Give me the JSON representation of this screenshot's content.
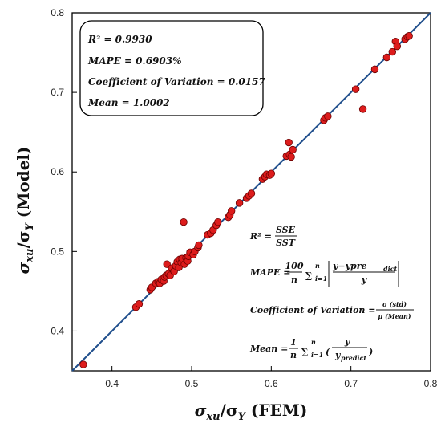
{
  "chart_data": {
    "type": "scatter",
    "x_title": {
      "sym": "σ",
      "sub": "xu",
      "sep": "/σ",
      "subY": "Y",
      "rest": " (FEM)"
    },
    "y_title": {
      "sym": "σ",
      "sub": "xu",
      "sep": "/σ",
      "subY": "Y",
      "rest": " (Model)"
    },
    "xlim": [
      0.35,
      0.8
    ],
    "ylim": [
      0.35,
      0.8
    ],
    "x_ticks": [
      "0.4",
      "0.5",
      "0.6",
      "0.7",
      "0.8"
    ],
    "y_ticks": [
      "0.4",
      "0.5",
      "0.6",
      "0.7",
      "0.8"
    ],
    "grid": false,
    "reference_line": "y = x",
    "colors": {
      "points": "#dd1c1c",
      "point_edge": "#6a0000",
      "line": "#1f4e8c",
      "frame": "#000000"
    },
    "stats_box": [
      "R² = 0.9930",
      "MAPE = 0.6903%",
      "Coefficient of Variation = 0.0157",
      "Mean = 1.0002"
    ],
    "formulas": {
      "r2": {
        "lhs": "R² =",
        "num": "SSE",
        "den": "SST"
      },
      "mape": {
        "lhs": "MAPE =",
        "num": "100",
        "den": "n",
        "sum": "∑",
        "sum_sup": "n",
        "sum_sub": "i=1",
        "abs_num": "y−ypre",
        "abs_num_sub": "dict",
        "abs_den": "y"
      },
      "cov": {
        "lhs": "Coefficient of Variation =",
        "num": "σ (std)",
        "den": "μ (Mean)"
      },
      "mean": {
        "lhs": "Mean =",
        "num": "1",
        "den": "n",
        "sum": "∑",
        "sum_sup": "n",
        "sum_sub": "i=1",
        "frac_num": "y",
        "frac_den": "y",
        "frac_den_sub": "predict"
      }
    },
    "points": [
      [
        0.364,
        0.358
      ],
      [
        0.43,
        0.43
      ],
      [
        0.434,
        0.434
      ],
      [
        0.448,
        0.452
      ],
      [
        0.45,
        0.455
      ],
      [
        0.455,
        0.46
      ],
      [
        0.458,
        0.462
      ],
      [
        0.46,
        0.46
      ],
      [
        0.462,
        0.465
      ],
      [
        0.465,
        0.463
      ],
      [
        0.466,
        0.468
      ],
      [
        0.468,
        0.47
      ],
      [
        0.469,
        0.484
      ],
      [
        0.471,
        0.472
      ],
      [
        0.473,
        0.47
      ],
      [
        0.475,
        0.479
      ],
      [
        0.478,
        0.475
      ],
      [
        0.48,
        0.482
      ],
      [
        0.482,
        0.487
      ],
      [
        0.484,
        0.48
      ],
      [
        0.485,
        0.49
      ],
      [
        0.487,
        0.486
      ],
      [
        0.488,
        0.491
      ],
      [
        0.49,
        0.537
      ],
      [
        0.491,
        0.484
      ],
      [
        0.493,
        0.492
      ],
      [
        0.495,
        0.488
      ],
      [
        0.496,
        0.494
      ],
      [
        0.498,
        0.499
      ],
      [
        0.502,
        0.496
      ],
      [
        0.504,
        0.5
      ],
      [
        0.508,
        0.505
      ],
      [
        0.509,
        0.508
      ],
      [
        0.52,
        0.521
      ],
      [
        0.524,
        0.523
      ],
      [
        0.527,
        0.527
      ],
      [
        0.531,
        0.533
      ],
      [
        0.533,
        0.537
      ],
      [
        0.546,
        0.543
      ],
      [
        0.548,
        0.546
      ],
      [
        0.55,
        0.551
      ],
      [
        0.56,
        0.561
      ],
      [
        0.569,
        0.567
      ],
      [
        0.572,
        0.57
      ],
      [
        0.575,
        0.573
      ],
      [
        0.589,
        0.591
      ],
      [
        0.592,
        0.594
      ],
      [
        0.594,
        0.597
      ],
      [
        0.598,
        0.596
      ],
      [
        0.6,
        0.598
      ],
      [
        0.619,
        0.62
      ],
      [
        0.622,
        0.637
      ],
      [
        0.623,
        0.622
      ],
      [
        0.625,
        0.619
      ],
      [
        0.627,
        0.628
      ],
      [
        0.666,
        0.665
      ],
      [
        0.668,
        0.668
      ],
      [
        0.671,
        0.67
      ],
      [
        0.706,
        0.704
      ],
      [
        0.715,
        0.679
      ],
      [
        0.73,
        0.729
      ],
      [
        0.745,
        0.744
      ],
      [
        0.752,
        0.751
      ],
      [
        0.756,
        0.764
      ],
      [
        0.758,
        0.758
      ],
      [
        0.768,
        0.767
      ],
      [
        0.771,
        0.77
      ],
      [
        0.773,
        0.771
      ]
    ]
  }
}
